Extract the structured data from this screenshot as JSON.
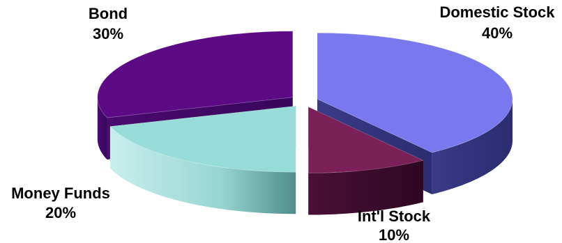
{
  "chart_data": {
    "type": "pie",
    "variant": "3d-exploded",
    "categories": [
      "Domestic Stock",
      "Int'l Stock",
      "Money Funds",
      "Bond"
    ],
    "values": [
      40,
      10,
      20,
      30
    ],
    "value_labels": [
      "40%",
      "10%",
      "20%",
      "30%"
    ],
    "colors": [
      "#7a78ee",
      "#7a1f57",
      "#98dcd9",
      "#5c0a86"
    ],
    "title": "",
    "legend": "none"
  }
}
